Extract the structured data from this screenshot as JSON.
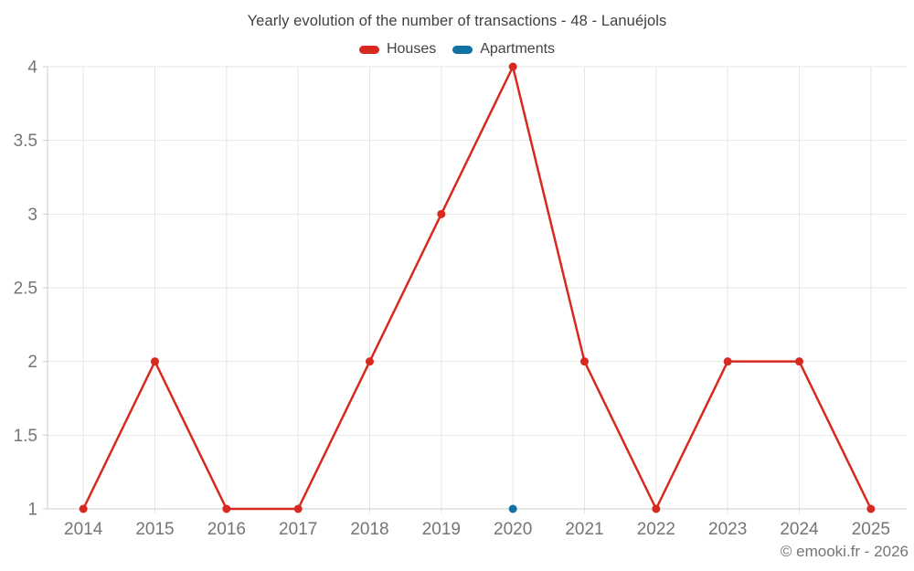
{
  "footer": {
    "copyright": "© emooki.fr - 2026"
  },
  "chart_data": {
    "type": "line",
    "title": "Yearly evolution of the number of transactions - 48 - Lanuéjols",
    "xlabel": "",
    "ylabel": "",
    "categories": [
      "2014",
      "2015",
      "2016",
      "2017",
      "2018",
      "2019",
      "2020",
      "2021",
      "2022",
      "2023",
      "2024",
      "2025"
    ],
    "series": [
      {
        "name": "Houses",
        "color": "#d7291f",
        "values": [
          1,
          2,
          1,
          1,
          2,
          3,
          4,
          2,
          1,
          2,
          2,
          1
        ]
      },
      {
        "name": "Apartments",
        "color": "#1272a5",
        "values": [
          null,
          null,
          null,
          null,
          null,
          null,
          1,
          null,
          null,
          null,
          null,
          null
        ]
      }
    ],
    "ylim": [
      1,
      4
    ],
    "yticks": [
      1,
      1.5,
      2,
      2.5,
      3,
      3.5,
      4
    ],
    "grid": true,
    "legend_position": "top",
    "colors": {
      "grid": "#e6e6e6",
      "axis": "#cccccc",
      "tick_label": "#757575"
    }
  }
}
